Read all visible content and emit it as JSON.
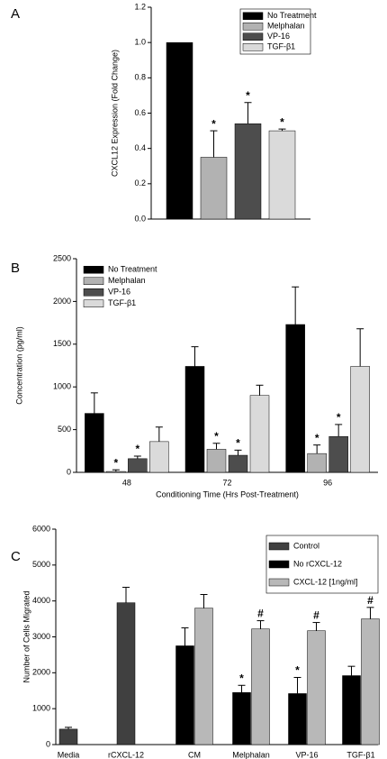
{
  "chart_data": [
    {
      "type": "bar",
      "label": "A",
      "y_label": "CXCL12 Expression (Fold Change)",
      "categories": [
        null
      ],
      "series": [
        {
          "name": "No Treatment",
          "color": "#000000",
          "values": [
            1.0
          ],
          "errors": [
            null
          ],
          "markers": [
            null
          ]
        },
        {
          "name": "Melphalan",
          "color": "#b2b2b2",
          "values": [
            0.35
          ],
          "errors": [
            0.15
          ],
          "markers": [
            "*"
          ]
        },
        {
          "name": "VP-16",
          "color": "#4d4d4d",
          "values": [
            0.54
          ],
          "errors": [
            0.12
          ],
          "markers": [
            "*"
          ]
        },
        {
          "name": "TGF-β1",
          "color": "#dadada",
          "values": [
            0.5
          ],
          "errors": [
            0.01
          ],
          "markers": [
            "*"
          ]
        }
      ],
      "ylim": [
        0,
        1.2
      ],
      "yticks": [
        {
          "value": 0,
          "label": "0.0"
        },
        0.2,
        0.4,
        0.6,
        0.8,
        {
          "value": 1,
          "label": "1.0"
        },
        1.2
      ],
      "legend": "upper right",
      "legend_frame": true
    },
    {
      "type": "bar",
      "label": "B",
      "y_label": "Concentration (pg/ml)",
      "x_label": "Conditioning Time (Hrs Post-Treatment)",
      "categories": [
        "48",
        "72",
        "96"
      ],
      "series": [
        {
          "name": "No Treatment",
          "color": "#000000",
          "values": [
            690,
            1240,
            1730
          ],
          "errors": [
            240,
            230,
            440
          ],
          "markers": [
            null,
            null,
            null
          ]
        },
        {
          "name": "Melphalan",
          "color": "#b2b2b2",
          "values": [
            10,
            270,
            220
          ],
          "errors": [
            20,
            70,
            100
          ],
          "markers": [
            "*",
            "*",
            "*"
          ]
        },
        {
          "name": "VP-16",
          "color": "#4d4d4d",
          "values": [
            160,
            200,
            420
          ],
          "errors": [
            30,
            60,
            140
          ],
          "markers": [
            "*",
            "*",
            "*"
          ]
        },
        {
          "name": "TGF-β1",
          "color": "#dadada",
          "values": [
            360,
            900,
            1240
          ],
          "errors": [
            170,
            120,
            440
          ],
          "markers": [
            null,
            null,
            null
          ]
        }
      ],
      "ylim": [
        0,
        2500
      ],
      "yticks": [
        0,
        500,
        1000,
        1500,
        2000,
        2500
      ],
      "legend": "upper left",
      "legend_frame": false
    },
    {
      "type": "bar",
      "label": "C",
      "y_label": "Number of Cells Migrated",
      "categories": [
        "Media",
        "rCXCL-12",
        "CM",
        "Melphalan",
        "VP-16",
        "TGF-β1"
      ],
      "series": [
        {
          "name": "Control",
          "color": "#404040",
          "values": [
            430,
            3950,
            null,
            null,
            null,
            null
          ],
          "errors": [
            50,
            430,
            null,
            null,
            null,
            null
          ],
          "markers": [
            null,
            null,
            null,
            null,
            null,
            null
          ]
        },
        {
          "name": "No rCXCL-12",
          "color": "#000000",
          "values": [
            null,
            null,
            2750,
            1450,
            1420,
            1920
          ],
          "errors": [
            null,
            null,
            500,
            200,
            450,
            260
          ],
          "markers": [
            null,
            null,
            null,
            "*",
            "*",
            null
          ]
        },
        {
          "name": "CXCL-12 [1ng/ml]",
          "color": "#b8b8b8",
          "values": [
            null,
            null,
            3800,
            3220,
            3170,
            3500
          ],
          "errors": [
            null,
            null,
            380,
            230,
            230,
            320
          ],
          "markers": [
            null,
            null,
            null,
            "#",
            "#",
            "#"
          ]
        }
      ],
      "ylim": [
        0,
        6000
      ],
      "yticks": [
        0,
        1000,
        2000,
        3000,
        4000,
        5000,
        6000
      ],
      "legend": "upper right",
      "legend_frame": true
    }
  ]
}
